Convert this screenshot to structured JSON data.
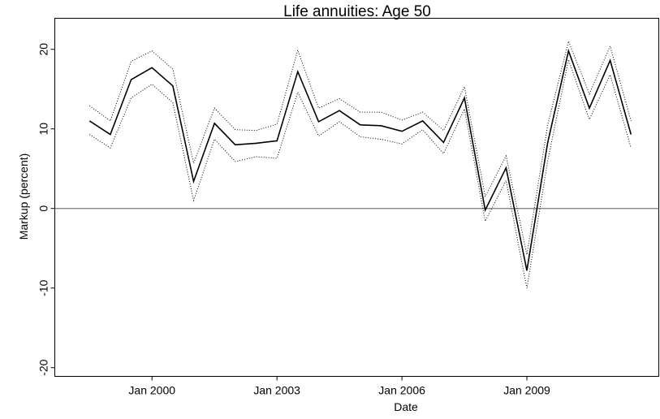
{
  "chart_data": {
    "type": "line",
    "title": "Life annuities: Age 50",
    "xlabel": "Date",
    "ylabel": "Markup (percent)",
    "x": [
      "1998-07",
      "1999-01",
      "1999-07",
      "2000-01",
      "2000-07",
      "2001-01",
      "2001-07",
      "2002-01",
      "2002-07",
      "2003-01",
      "2003-07",
      "2004-01",
      "2004-07",
      "2005-01",
      "2005-07",
      "2006-01",
      "2006-07",
      "2007-01",
      "2007-07",
      "2008-01",
      "2008-07",
      "2009-01",
      "2009-07",
      "2010-01",
      "2010-07",
      "2011-01",
      "2011-07"
    ],
    "series": [
      {
        "color": "#000000",
        "style": "solid",
        "values": [
          11.0,
          9.3,
          16.2,
          17.7,
          15.4,
          3.4,
          10.7,
          8.0,
          8.2,
          8.5,
          17.2,
          10.9,
          12.3,
          10.5,
          10.4,
          9.7,
          11.0,
          8.3,
          13.9,
          -0.2,
          5.1,
          -7.8,
          8.3,
          19.8,
          12.6,
          18.6,
          9.3
        ]
      },
      {
        "color": "#000000",
        "style": "dotted",
        "values": [
          12.9,
          11.0,
          18.5,
          19.8,
          17.5,
          5.7,
          12.6,
          9.9,
          9.8,
          10.6,
          19.9,
          12.6,
          13.8,
          12.1,
          12.1,
          11.1,
          12.1,
          9.8,
          15.3,
          1.5,
          6.6,
          -5.8,
          10.5,
          21.0,
          14.4,
          20.4,
          11.0
        ]
      },
      {
        "color": "#000000",
        "style": "dotted",
        "values": [
          9.3,
          7.6,
          13.9,
          15.6,
          13.3,
          1.0,
          8.7,
          5.9,
          6.5,
          6.3,
          14.6,
          9.1,
          10.9,
          9.0,
          8.7,
          8.1,
          9.9,
          6.9,
          12.5,
          -1.6,
          3.5,
          -10.0,
          6.0,
          18.7,
          11.2,
          16.8,
          7.6
        ]
      }
    ],
    "xlim": [
      "1997-09",
      "2012-03"
    ],
    "xticks": [
      {
        "value": "2000-01",
        "label": "Jan 2000"
      },
      {
        "value": "2003-01",
        "label": "Jan 2003"
      },
      {
        "value": "2006-01",
        "label": "Jan 2006"
      },
      {
        "value": "2009-01",
        "label": "Jan 2009"
      }
    ],
    "ylim": [
      -21.1,
      23.9
    ],
    "yticks": [
      -20,
      -10,
      0,
      10,
      20
    ],
    "hline": 0,
    "hline_color": "#777777"
  }
}
